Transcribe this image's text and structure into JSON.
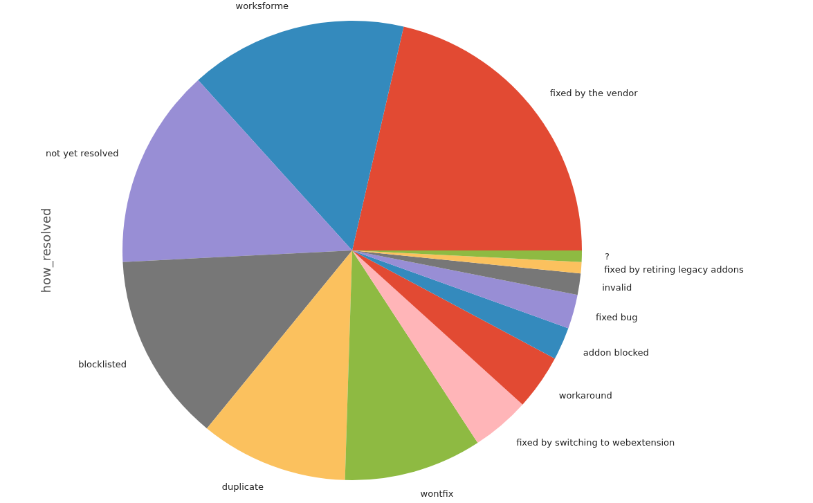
{
  "chart_data": {
    "type": "pie",
    "ylabel": "how_resolved",
    "categories": [
      "fixed by the vendor",
      "worksforme",
      "not yet resolved",
      "blocklisted",
      "duplicate",
      "wontfix",
      "fixed by switching to webextension",
      "workaround",
      "addon blocked",
      "fixed bug",
      "invalid",
      "fixed by retiring legacy addons",
      "?"
    ],
    "values": [
      21.4,
      15.3,
      14.1,
      13.3,
      10.4,
      9.7,
      4.1,
      3.9,
      2.3,
      2.4,
      1.5,
      0.8,
      0.8
    ],
    "colors": [
      "#e24a33",
      "#348abd",
      "#988ed5",
      "#777777",
      "#fbc15e",
      "#8eba42",
      "#ffb5b8",
      "#e24a33",
      "#348abd",
      "#988ed5",
      "#777777",
      "#fbc15e",
      "#8eba42"
    ]
  }
}
